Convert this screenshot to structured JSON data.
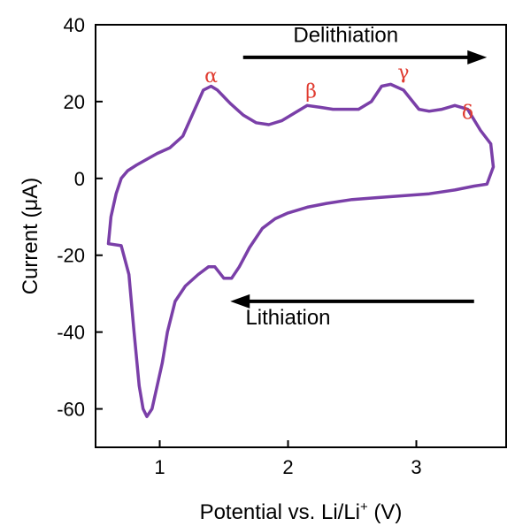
{
  "chart_data": {
    "type": "line",
    "title": "",
    "xlabel": "Potential vs. Li/Li",
    "xlabel_sup": "+",
    "xlabel_unit": " (V)",
    "ylabel": "Current (μA)",
    "xlim": [
      0.5,
      3.7
    ],
    "ylim": [
      -70,
      40
    ],
    "xticks": [
      1,
      2,
      3
    ],
    "yticks": [
      40,
      20,
      0,
      -20,
      -40,
      -60
    ],
    "xtick_labels": [
      "1",
      "2",
      "3"
    ],
    "ytick_labels": [
      "40",
      "20",
      "0",
      "-20",
      "-40",
      "-60"
    ],
    "grid": false,
    "legend": null,
    "series": [
      {
        "color": "#7a3fa8",
        "x": [
          3.58,
          3.5,
          3.4,
          3.35,
          3.3,
          3.2,
          3.1,
          3.02,
          2.9,
          2.8,
          2.73,
          2.65,
          2.55,
          2.45,
          2.35,
          2.25,
          2.15,
          2.05,
          1.95,
          1.85,
          1.75,
          1.65,
          1.55,
          1.45,
          1.4,
          1.34,
          1.26,
          1.18,
          1.08,
          0.98,
          0.9,
          0.82,
          0.75,
          0.7,
          0.66,
          0.62,
          0.6,
          0.6,
          0.7,
          0.76,
          0.8,
          0.84,
          0.87,
          0.9,
          0.94,
          0.98,
          1.02,
          1.06,
          1.12,
          1.2,
          1.3,
          1.38,
          1.43,
          1.5,
          1.56,
          1.62,
          1.7,
          1.8,
          1.9,
          2.0,
          2.15,
          2.3,
          2.5,
          2.7,
          2.9,
          3.1,
          3.3,
          3.45,
          3.55,
          3.6,
          3.58
        ],
        "y": [
          9,
          12.5,
          18,
          18.5,
          19,
          18,
          17.5,
          18,
          23,
          24.5,
          24,
          20,
          18,
          18,
          18,
          18.5,
          19,
          17,
          15,
          14,
          14.5,
          16.5,
          19.5,
          23,
          24,
          23,
          17,
          11,
          8,
          6.5,
          5,
          3.5,
          2,
          0,
          -4,
          -10,
          -17,
          -17,
          -17.5,
          -25,
          -40,
          -54,
          -60,
          -62,
          -60,
          -54,
          -48,
          -40,
          -32,
          -28,
          -25,
          -23,
          -23,
          -26,
          -26,
          -23,
          -18,
          -13,
          -10.5,
          -9,
          -7.5,
          -6.5,
          -5.5,
          -5,
          -4.5,
          -4,
          -3,
          -2,
          -1.5,
          3,
          9
        ]
      }
    ],
    "annotations": {
      "peaks": [
        {
          "label": "α",
          "x": 1.4,
          "y": 25
        },
        {
          "label": "β",
          "x": 2.18,
          "y": 21
        },
        {
          "label": "γ",
          "x": 2.9,
          "y": 26
        },
        {
          "label": "δ",
          "x": 3.4,
          "y": 15.5
        }
      ],
      "peak_color": "#e03c31",
      "delithiation": {
        "label": "Delithiation",
        "label_x": 2.45,
        "label_y": 35.5,
        "arrow_from": 1.65,
        "arrow_to": 3.55,
        "arrow_y": 31.5
      },
      "lithiation": {
        "label": "Lithiation",
        "label_x": 2.0,
        "label_y": -38,
        "arrow_from": 3.45,
        "arrow_to": 1.55,
        "arrow_y": -32
      }
    }
  }
}
